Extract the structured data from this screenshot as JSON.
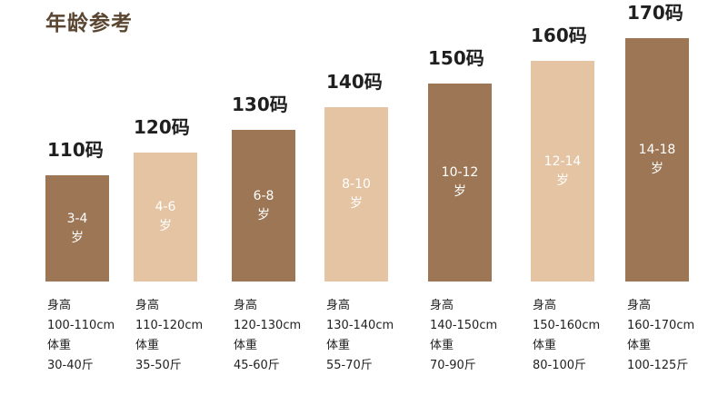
{
  "title": "年龄参考",
  "colors": {
    "dark": "#9d7655",
    "light": "#e5c4a4",
    "title": "#5b4632"
  },
  "chart_data": {
    "type": "bar",
    "categories": [
      "110码",
      "120码",
      "130码",
      "140码",
      "150码",
      "160码",
      "170码"
    ],
    "values": [
      110,
      120,
      130,
      140,
      150,
      160,
      170
    ],
    "ylim": [
      70,
      170
    ],
    "grid": false,
    "bar_tones": [
      "dark",
      "light",
      "dark",
      "light",
      "dark",
      "light",
      "dark"
    ],
    "age_labels": [
      {
        "range": "3-4",
        "unit": "岁"
      },
      {
        "range": "4-6",
        "unit": "岁"
      },
      {
        "range": "6-8",
        "unit": "岁"
      },
      {
        "range": "8-10",
        "unit": "岁"
      },
      {
        "range": "10-12",
        "unit": "岁"
      },
      {
        "range": "12-14",
        "unit": "岁"
      },
      {
        "range": "14-18",
        "unit": "岁"
      }
    ],
    "specs": [
      {
        "height_label": "身高",
        "height": "100-110cm",
        "weight_label": "体重",
        "weight": "30-40斤"
      },
      {
        "height_label": "身高",
        "height": "110-120cm",
        "weight_label": "体重",
        "weight": "35-50斤"
      },
      {
        "height_label": "身高",
        "height": "120-130cm",
        "weight_label": "体重",
        "weight": "45-60斤"
      },
      {
        "height_label": "身高",
        "height": "130-140cm",
        "weight_label": "体重",
        "weight": "55-70斤"
      },
      {
        "height_label": "身高",
        "height": "140-150cm",
        "weight_label": "体重",
        "weight": "70-90斤"
      },
      {
        "height_label": "身高",
        "height": "150-160cm",
        "weight_label": "体重",
        "weight": "80-100斤"
      },
      {
        "height_label": "身高",
        "height": "160-170cm",
        "weight_label": "体重",
        "weight": "100-125斤"
      }
    ]
  }
}
